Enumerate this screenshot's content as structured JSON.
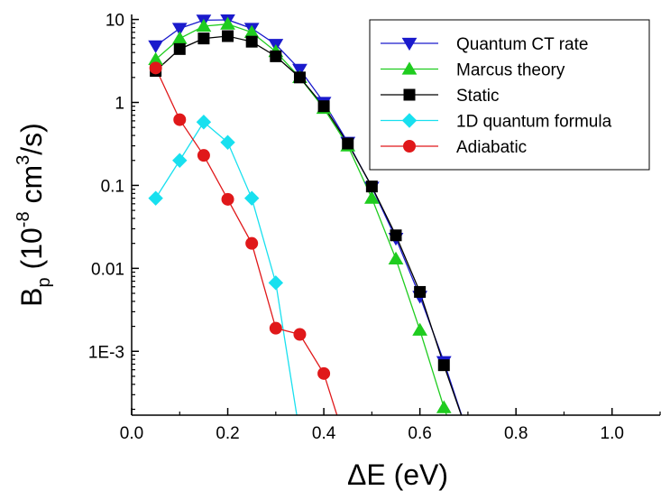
{
  "chart_data": {
    "type": "line",
    "title": "",
    "xlabel": "ΔE (eV)",
    "ylabel": {
      "base": "B",
      "sub": "p",
      "open": " (10",
      "exp": "-8",
      "mid": " cm",
      "exp2": "3",
      "close": "/s)"
    },
    "xlim": [
      0.0,
      1.1
    ],
    "ylim": [
      0.00017,
      11.5
    ],
    "yscale": "log",
    "grid": false,
    "legend_position": "top-right",
    "xticks": [
      {
        "value": 0.0,
        "label": "0.0"
      },
      {
        "value": 0.2,
        "label": "0.2"
      },
      {
        "value": 0.4,
        "label": "0.4"
      },
      {
        "value": 0.6,
        "label": "0.6"
      },
      {
        "value": 0.8,
        "label": "0.8"
      },
      {
        "value": 1.0,
        "label": "1.0"
      }
    ],
    "yticks": [
      {
        "value": 10,
        "label": "10"
      },
      {
        "value": 1,
        "label": "1"
      },
      {
        "value": 0.1,
        "label": "0.1"
      },
      {
        "value": 0.01,
        "label": "0.01"
      },
      {
        "value": 0.001,
        "label": "1E-3"
      }
    ],
    "series": [
      {
        "name": "Quantum CT rate",
        "color": "#1a1acc",
        "marker": "triangle-down",
        "x": [
          0.05,
          0.1,
          0.15,
          0.2,
          0.25,
          0.3,
          0.35,
          0.4,
          0.45,
          0.5,
          0.55,
          0.6,
          0.65,
          0.7
        ],
        "y": [
          4.8,
          7.8,
          9.8,
          9.9,
          7.8,
          5.0,
          2.5,
          1.0,
          0.33,
          0.095,
          0.023,
          0.0046,
          0.00075,
          0.0001
        ]
      },
      {
        "name": "Marcus theory",
        "color": "#1fcc1f",
        "marker": "triangle-up",
        "x": [
          0.05,
          0.1,
          0.15,
          0.2,
          0.25,
          0.3,
          0.35,
          0.4,
          0.45,
          0.5,
          0.55,
          0.6,
          0.65,
          0.67
        ],
        "y": [
          3.3,
          5.9,
          8.3,
          8.8,
          7.0,
          4.1,
          2.0,
          0.85,
          0.3,
          0.07,
          0.013,
          0.0018,
          0.00021,
          0.0001
        ]
      },
      {
        "name": "Static",
        "color": "#000000",
        "marker": "square",
        "x": [
          0.05,
          0.1,
          0.15,
          0.2,
          0.25,
          0.3,
          0.35,
          0.4,
          0.45,
          0.5,
          0.55,
          0.6,
          0.65,
          0.7
        ],
        "y": [
          2.4,
          4.4,
          5.9,
          6.3,
          5.4,
          3.6,
          2.0,
          0.9,
          0.32,
          0.097,
          0.025,
          0.0052,
          0.00068,
          0.0001
        ]
      },
      {
        "name": "1D quantum formula",
        "color": "#18e0ef",
        "marker": "diamond",
        "x": [
          0.05,
          0.1,
          0.15,
          0.2,
          0.25,
          0.3,
          0.35
        ],
        "y": [
          0.07,
          0.2,
          0.58,
          0.33,
          0.07,
          0.0067,
          0.0001
        ]
      },
      {
        "name": "Adiabatic",
        "color": "#e0181a",
        "marker": "circle",
        "x": [
          0.05,
          0.1,
          0.15,
          0.2,
          0.25,
          0.3,
          0.35,
          0.4,
          0.44
        ],
        "y": [
          2.6,
          0.62,
          0.23,
          0.068,
          0.02,
          0.0019,
          0.0016,
          0.00054,
          0.0001
        ]
      }
    ]
  }
}
